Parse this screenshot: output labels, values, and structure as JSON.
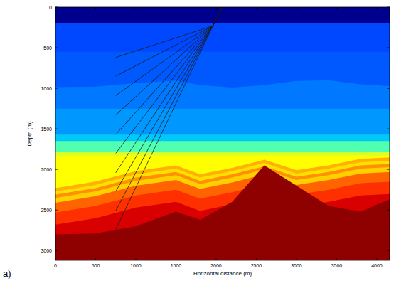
{
  "chart_data": {
    "type": "section",
    "panel_label": "a)",
    "x_label": "Horizontal distance (m)",
    "y_label": "Depth (m)",
    "xlim": [
      0,
      4160
    ],
    "ylim": [
      3120,
      0
    ],
    "xticks": [
      0,
      500,
      1000,
      1500,
      2000,
      2500,
      3000,
      3500,
      4000
    ],
    "yticks": [
      0,
      500,
      1000,
      1500,
      2000,
      2500,
      3000
    ],
    "layer_x": [
      0,
      500,
      1000,
      1500,
      1800,
      2200,
      2600,
      3000,
      3400,
      3800,
      4200
    ],
    "layers": [
      {
        "color": "#00008f",
        "top": [
          0,
          0,
          0,
          0,
          0,
          0,
          0,
          0,
          0,
          0,
          0
        ]
      },
      {
        "color": "#0048ff",
        "top": [
          200,
          200,
          200,
          200,
          200,
          200,
          200,
          200,
          200,
          200,
          200
        ]
      },
      {
        "color": "#0058ff",
        "top": [
          550,
          550,
          550,
          550,
          550,
          550,
          550,
          550,
          550,
          550,
          550
        ]
      },
      {
        "color": "#0078ff",
        "top": [
          985,
          980,
          935,
          905,
          960,
          990,
          960,
          910,
          900,
          950,
          975
        ]
      },
      {
        "color": "#0098ff",
        "top": [
          1250,
          1250,
          1250,
          1250,
          1250,
          1250,
          1250,
          1250,
          1250,
          1250,
          1250
        ]
      },
      {
        "color": "#00c8f8",
        "top": [
          1570,
          1570,
          1570,
          1570,
          1570,
          1570,
          1570,
          1570,
          1570,
          1570,
          1570
        ]
      },
      {
        "color": "#50ffb0",
        "top": [
          1650,
          1650,
          1650,
          1650,
          1650,
          1650,
          1650,
          1650,
          1650,
          1650,
          1650
        ]
      },
      {
        "color": "#d8ff28",
        "top": [
          1780,
          1780,
          1780,
          1780,
          1780,
          1780,
          1780,
          1780,
          1780,
          1780,
          1780
        ]
      },
      {
        "color": "#ffff00",
        "top": [
          1830,
          1830,
          1830,
          1830,
          1830,
          1830,
          1830,
          1830,
          1830,
          1830,
          1830
        ]
      },
      {
        "color": "#ffb000",
        "top": [
          2230,
          2150,
          2020,
          1950,
          2060,
          1980,
          1880,
          2010,
          1950,
          1870,
          1850
        ]
      },
      {
        "color": "#ffe000",
        "top": [
          2270,
          2190,
          2060,
          1990,
          2100,
          2020,
          1920,
          2050,
          1990,
          1910,
          1890
        ]
      },
      {
        "color": "#ff9000",
        "top": [
          2310,
          2230,
          2100,
          2030,
          2140,
          2060,
          1960,
          2090,
          2030,
          1950,
          1930
        ]
      },
      {
        "color": "#ffd000",
        "top": [
          2350,
          2270,
          2140,
          2070,
          2180,
          2100,
          2000,
          2130,
          2070,
          1990,
          1970
        ]
      },
      {
        "color": "#ff6400",
        "top": [
          2410,
          2330,
          2200,
          2130,
          2240,
          2160,
          2060,
          2190,
          2130,
          2050,
          2030
        ]
      },
      {
        "color": "#ff3000",
        "top": [
          2530,
          2450,
          2320,
          2250,
          2360,
          2280,
          2180,
          2310,
          2250,
          2170,
          2150
        ]
      },
      {
        "color": "#d80000",
        "top": [
          2680,
          2600,
          2470,
          2400,
          2510,
          2430,
          2330,
          2460,
          2400,
          2320,
          2300
        ]
      },
      {
        "color": "#8f0000",
        "top": [
          2800,
          2790,
          2700,
          2520,
          2620,
          2400,
          1950,
          2200,
          2450,
          2520,
          2350
        ]
      }
    ],
    "ray_color": "#1a1a1a",
    "rays": [
      {
        "x": [
          2080,
          1960,
          750
        ],
        "values": [
          0,
          230,
          620
        ]
      },
      {
        "x": [
          2080,
          1960,
          750
        ],
        "values": [
          0,
          230,
          850
        ]
      },
      {
        "x": [
          2080,
          1960,
          750
        ],
        "values": [
          0,
          230,
          1090
        ]
      },
      {
        "x": [
          2080,
          1960,
          750
        ],
        "values": [
          0,
          230,
          1330
        ]
      },
      {
        "x": [
          2080,
          1960,
          750
        ],
        "values": [
          0,
          230,
          1570
        ]
      },
      {
        "x": [
          2080,
          1960,
          750
        ],
        "values": [
          0,
          230,
          1800
        ]
      },
      {
        "x": [
          2080,
          1960,
          750
        ],
        "values": [
          0,
          230,
          2040
        ]
      },
      {
        "x": [
          2080,
          1960,
          750
        ],
        "values": [
          0,
          230,
          2270
        ]
      },
      {
        "x": [
          2080,
          1960,
          750
        ],
        "values": [
          0,
          230,
          2510
        ]
      },
      {
        "x": [
          2080,
          1960,
          750
        ],
        "values": [
          0,
          230,
          2740
        ]
      }
    ]
  }
}
